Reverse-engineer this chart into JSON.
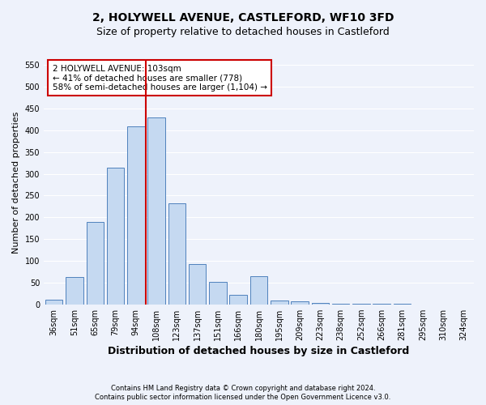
{
  "title": "2, HOLYWELL AVENUE, CASTLEFORD, WF10 3FD",
  "subtitle": "Size of property relative to detached houses in Castleford",
  "xlabel": "Distribution of detached houses by size in Castleford",
  "ylabel": "Number of detached properties",
  "categories": [
    "36sqm",
    "51sqm",
    "65sqm",
    "79sqm",
    "94sqm",
    "108sqm",
    "123sqm",
    "137sqm",
    "151sqm",
    "166sqm",
    "180sqm",
    "195sqm",
    "209sqm",
    "223sqm",
    "238sqm",
    "252sqm",
    "266sqm",
    "281sqm",
    "295sqm",
    "310sqm",
    "324sqm"
  ],
  "values": [
    10,
    62,
    190,
    315,
    410,
    430,
    232,
    93,
    52,
    21,
    65,
    8,
    6,
    3,
    2,
    2,
    1,
    1,
    0,
    0,
    0
  ],
  "bar_color": "#c5d9f1",
  "bar_edge_color": "#4f81bd",
  "subject_line_color": "#cc0000",
  "annotation_title": "2 HOLYWELL AVENUE: 103sqm",
  "annotation_line1": "← 41% of detached houses are smaller (778)",
  "annotation_line2": "58% of semi-detached houses are larger (1,104) →",
  "annotation_box_color": "#cc0000",
  "ylim": [
    0,
    560
  ],
  "yticks": [
    0,
    50,
    100,
    150,
    200,
    250,
    300,
    350,
    400,
    450,
    500,
    550
  ],
  "footer1": "Contains HM Land Registry data © Crown copyright and database right 2024.",
  "footer2": "Contains public sector information licensed under the Open Government Licence v3.0.",
  "bg_color": "#eef2fb",
  "grid_color": "#ffffff",
  "title_fontsize": 10,
  "subtitle_fontsize": 9,
  "tick_fontsize": 7,
  "ylabel_fontsize": 8,
  "xlabel_fontsize": 9
}
